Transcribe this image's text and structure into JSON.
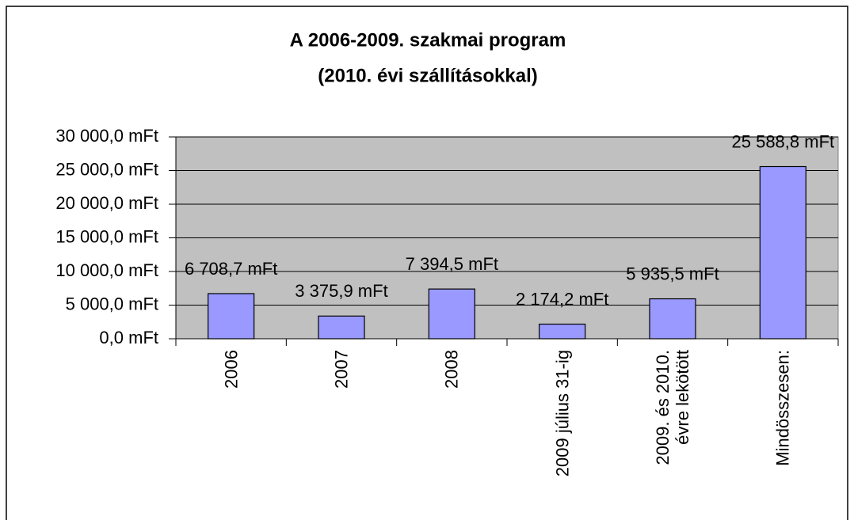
{
  "chart_data": {
    "type": "bar",
    "title": "A 2006-2009. szakmai program",
    "subtitle": "(2010. évi szállításokkal)",
    "categories": [
      "2006",
      "2007",
      "2008",
      "2009 július 31-ig",
      "2009. és 2010. évre lekötött",
      "Mindösszesen:"
    ],
    "values": [
      6708.7,
      3375.9,
      7394.5,
      2174.2,
      5935.5,
      25588.8
    ],
    "value_labels": [
      "6 708,7 mFt",
      "3 375,9 mFt",
      "7 394,5 mFt",
      "2 174,2 mFt",
      "5 935,5 mFt",
      "25 588,8 mFt"
    ],
    "color": "#9999ff",
    "ylim": [
      0,
      30000
    ],
    "yticks": [
      {
        "value": 0,
        "label": "0,0 mFt"
      },
      {
        "value": 5000,
        "label": "5 000,0 mFt"
      },
      {
        "value": 10000,
        "label": "10 000,0 mFt"
      },
      {
        "value": 15000,
        "label": "15 000,0 mFt"
      },
      {
        "value": 20000,
        "label": "20 000,0 mFt"
      },
      {
        "value": 25000,
        "label": "25 000,0 mFt"
      },
      {
        "value": 30000,
        "label": "30 000,0 mFt"
      }
    ],
    "grid": true
  }
}
